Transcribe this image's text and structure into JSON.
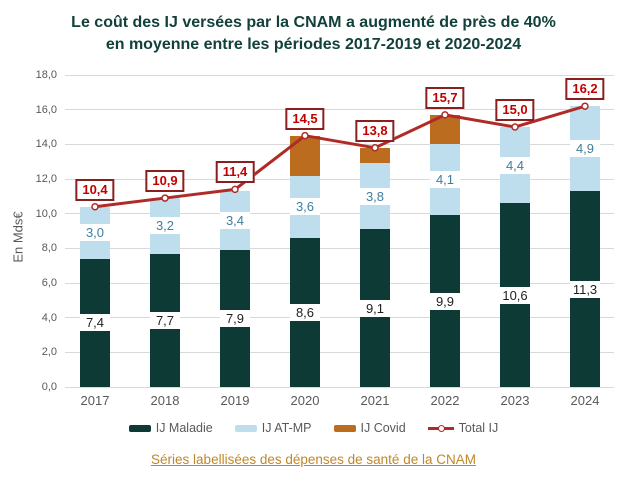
{
  "title": {
    "line1": "Le coût des IJ versées par la CNAM a augmenté de près de 40%",
    "line2": "en moyenne entre les périodes 2017-2019 et 2020-2024"
  },
  "chart_data": {
    "type": "bar",
    "subtype": "stacked-bars-with-total-line",
    "title": "Le coût des IJ versées par la CNAM a augmenté de près de 40% en moyenne entre les périodes 2017-2019 et 2020-2024",
    "categories": [
      "2017",
      "2018",
      "2019",
      "2020",
      "2021",
      "2022",
      "2023",
      "2024"
    ],
    "series": [
      {
        "name": "IJ Maladie",
        "type": "bar",
        "color": "#0d3a34",
        "label_color": "#1f1f1f",
        "values": [
          7.4,
          7.7,
          7.9,
          8.6,
          9.1,
          9.9,
          10.6,
          11.3
        ],
        "labels": [
          "7,4",
          "7,7",
          "7,9",
          "8,6",
          "9,1",
          "9,9",
          "10,6",
          "11,3"
        ]
      },
      {
        "name": "IJ AT-MP",
        "type": "bar",
        "color": "#bfdeed",
        "label_color": "#3f7e9c",
        "values": [
          3.0,
          3.2,
          3.4,
          3.6,
          3.8,
          4.1,
          4.4,
          4.9
        ],
        "labels": [
          "3,0",
          "3,2",
          "3,4",
          "3,6",
          "3,8",
          "4,1",
          "4,4",
          "4,9"
        ]
      },
      {
        "name": "IJ Covid",
        "type": "bar",
        "color": "#bc6c1f",
        "label_color": "#bc6c1f",
        "values": [
          0,
          0,
          0,
          2.3,
          0.9,
          1.7,
          0,
          0
        ],
        "labels": [
          "",
          "",
          "",
          "",
          "",
          "",
          "",
          ""
        ]
      },
      {
        "name": "Total IJ",
        "type": "line",
        "color": "#b02b28",
        "label_text_color": "#c00000",
        "label_border_color": "#8a1f1f",
        "values": [
          10.4,
          10.9,
          11.4,
          14.5,
          13.8,
          15.7,
          15.0,
          16.2
        ],
        "labels": [
          "10,4",
          "10,9",
          "11,4",
          "14,5",
          "13,8",
          "15,7",
          "15,0",
          "16,2"
        ]
      }
    ],
    "xlabel": "",
    "ylabel": "En Mds€",
    "ylim": [
      0,
      18
    ],
    "y_ticks": [
      "0,0",
      "2,0",
      "4,0",
      "6,0",
      "8,0",
      "10,0",
      "12,0",
      "14,0",
      "16,0",
      "18,0"
    ],
    "grid": true,
    "grid_color": "#d9d9d9",
    "axis_text_color": "#595959",
    "title_color": "#12403b",
    "legend_position": "bottom"
  },
  "footer": {
    "link_text": "Séries labellisées des dépenses de santé de la CNAM",
    "link_color": "#bf872a"
  }
}
